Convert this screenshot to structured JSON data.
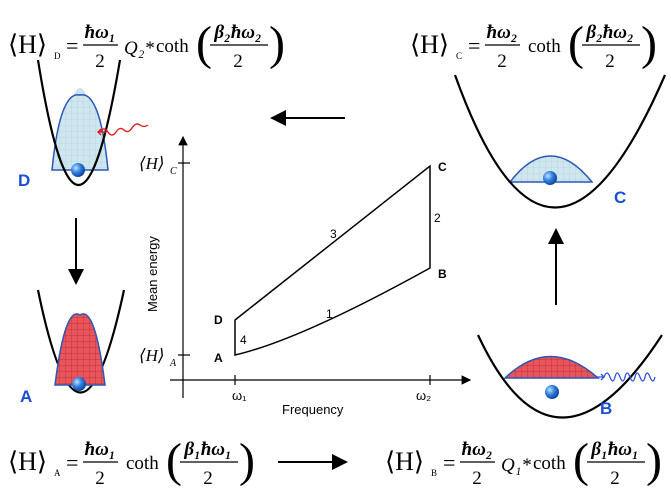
{
  "equations": {
    "D": {
      "lhs": "⟨H⟩",
      "sub": "D",
      "eq": "=",
      "num": "ħω₁",
      "den": "2",
      "factor": "Q₂*",
      "func": "coth",
      "arg_num": "β₂ħω₂",
      "arg_den": "2"
    },
    "C": {
      "lhs": "⟨H⟩",
      "sub": "C",
      "eq": "=",
      "num": "ħω₂",
      "den": "2",
      "func": "coth",
      "arg_num": "β₂ħω₂",
      "arg_den": "2"
    },
    "A": {
      "lhs": "⟨H⟩",
      "sub": "A",
      "eq": "=",
      "num": "ħω₁",
      "den": "2",
      "func": "coth",
      "arg_num": "β₁ħω₁",
      "arg_den": "2"
    },
    "B": {
      "lhs": "⟨H⟩",
      "sub": "B",
      "eq": "=",
      "num": "ħω₂",
      "den": "2",
      "factor": "Q₁*",
      "func": "coth",
      "arg_num": "β₁ħω₁",
      "arg_den": "2"
    }
  },
  "states": {
    "D": "D",
    "C": "C",
    "A": "A",
    "B": "B"
  },
  "plot": {
    "x_label": "Frequency",
    "y_label": "Mean energy",
    "x_ticks": [
      "ω₁",
      "ω₂"
    ],
    "y_ticks": [
      {
        "text": "⟨H⟩",
        "sub": "C"
      },
      {
        "text": "⟨H⟩",
        "sub": "A"
      }
    ],
    "points": {
      "A": "A",
      "B": "B",
      "C": "C",
      "D": "D"
    },
    "strokes": [
      "1",
      "2",
      "3",
      "4"
    ]
  }
}
